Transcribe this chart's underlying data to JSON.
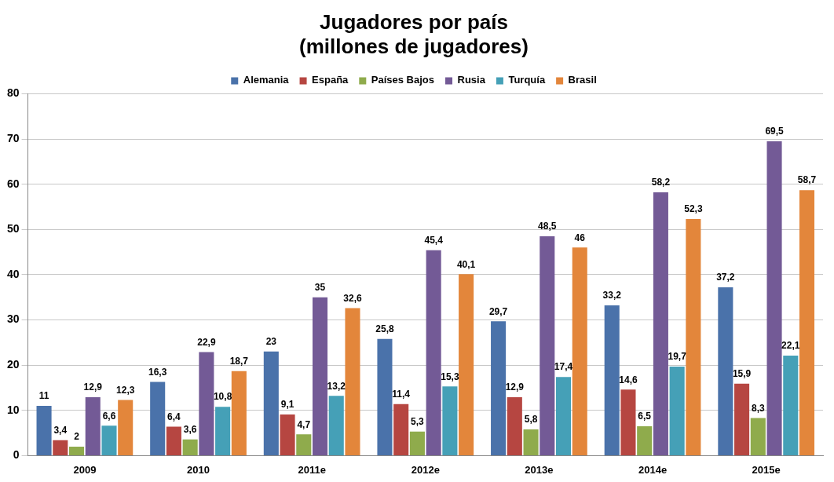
{
  "chart_data": {
    "type": "bar",
    "title": "Jugadores por país\n(millones de jugadores)",
    "categories": [
      "2009",
      "2010",
      "2011e",
      "2012e",
      "2013e",
      "2014e",
      "2015e"
    ],
    "series": [
      {
        "name": "Alemania",
        "color": "#4a72aa",
        "values": [
          11,
          16.3,
          23,
          25.8,
          29.7,
          33.2,
          37.2
        ],
        "value_labels": [
          "11",
          "16,3",
          "23",
          "25,8",
          "29,7",
          "33,2",
          "37,2"
        ]
      },
      {
        "name": "España",
        "color": "#b64641",
        "values": [
          3.4,
          6.4,
          9.1,
          11.4,
          12.9,
          14.6,
          15.9
        ],
        "value_labels": [
          "3,4",
          "6,4",
          "9,1",
          "11,4",
          "12,9",
          "14,6",
          "15,9"
        ]
      },
      {
        "name": "Países Bajos",
        "color": "#8fab4c",
        "values": [
          2,
          3.6,
          4.7,
          5.3,
          5.8,
          6.5,
          8.3
        ],
        "value_labels": [
          "2",
          "3,6",
          "4,7",
          "5,3",
          "5,8",
          "6,5",
          "8,3"
        ]
      },
      {
        "name": "Rusia",
        "color": "#735a96",
        "values": [
          12.9,
          22.9,
          35,
          45.4,
          48.5,
          58.2,
          69.5
        ],
        "value_labels": [
          "12,9",
          "22,9",
          "35",
          "45,4",
          "48,5",
          "58,2",
          "69,5"
        ]
      },
      {
        "name": "Turquía",
        "color": "#45a0b7",
        "values": [
          6.6,
          10.8,
          13.2,
          15.3,
          17.4,
          19.7,
          22.1
        ],
        "value_labels": [
          "6,6",
          "10,8",
          "13,2",
          "15,3",
          "17,4",
          "19,7",
          "22,1"
        ]
      },
      {
        "name": "Brasil",
        "color": "#e3863b",
        "values": [
          12.3,
          18.7,
          32.6,
          40.1,
          46,
          52.3,
          58.7
        ],
        "value_labels": [
          "12,3",
          "18,7",
          "32,6",
          "40,1",
          "46",
          "52,3",
          "58,7"
        ]
      }
    ],
    "ylim": [
      0,
      80
    ],
    "yticks": [
      0,
      10,
      20,
      30,
      40,
      50,
      60,
      70,
      80
    ],
    "grid": "y",
    "legend": "top"
  }
}
